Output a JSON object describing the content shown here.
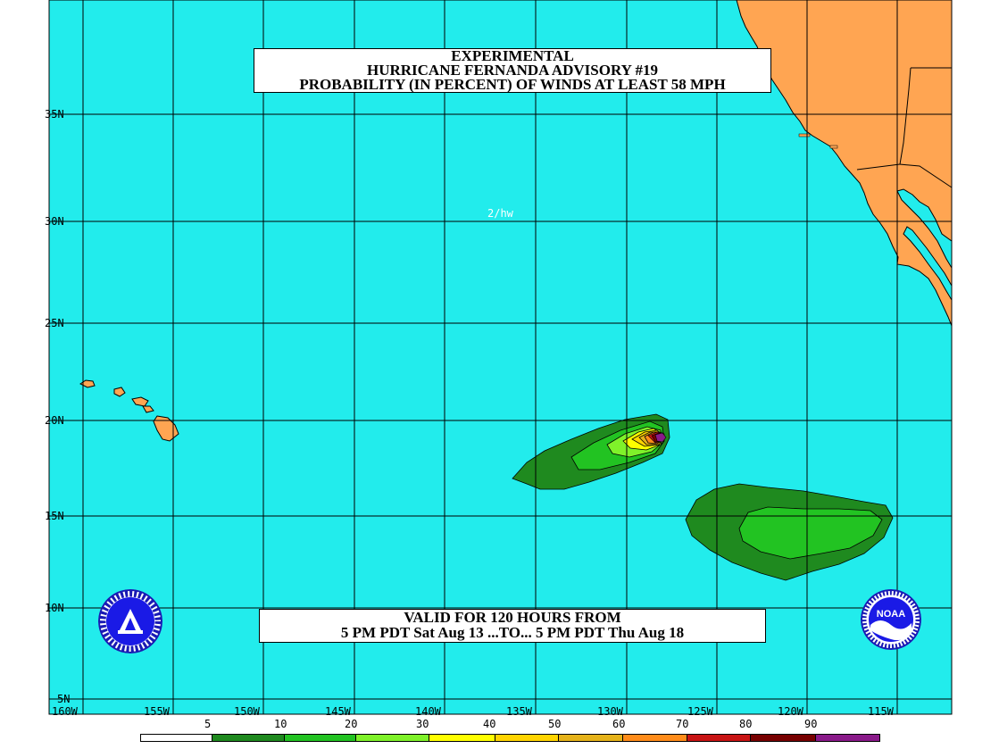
{
  "title": {
    "line1": "EXPERIMENTAL",
    "line2": "HURRICANE FERNANDA ADVISORY #19",
    "line3": "PROBABILITY (IN PERCENT) OF WINDS AT LEAST 58 MPH"
  },
  "valid": {
    "line1": "VALID FOR 120 HOURS FROM",
    "line2": "5 PM PDT Sat Aug 13 ...TO... 5 PM PDT Thu Aug 18"
  },
  "initials": "2/hw",
  "lat_labels": [
    "35N",
    "30N",
    "25N",
    "20N",
    "15N",
    "10N",
    "5N"
  ],
  "lon_labels": [
    "160W",
    "155W",
    "150W",
    "145W",
    "140W",
    "135W",
    "130W",
    "125W",
    "120W",
    "115W"
  ],
  "legend": {
    "values": [
      "5",
      "10",
      "20",
      "30",
      "40",
      "50",
      "60",
      "70",
      "80",
      "90"
    ],
    "colors": [
      "#ffffff",
      "#1f8a1f",
      "#22c322",
      "#7ff22a",
      "#ffff00",
      "#ffd400",
      "#e5b21a",
      "#ff8c1a",
      "#c81414",
      "#780000",
      "#8a1a8a"
    ]
  },
  "colors": {
    "ocean": "#22ecec",
    "land": "#ffa552",
    "grid": "#000000"
  },
  "logos": {
    "left": "nws-seal-icon",
    "right": "noaa-logo-icon",
    "noaa_text": "NOAA"
  }
}
